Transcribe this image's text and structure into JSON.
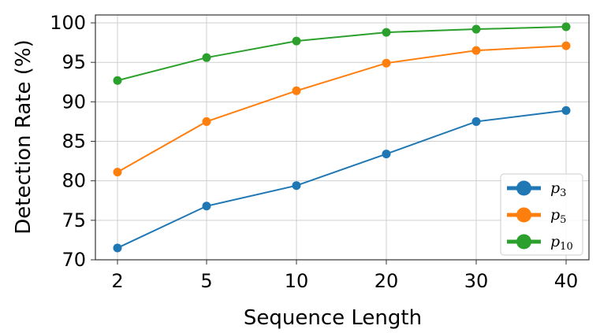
{
  "chart_data": {
    "type": "line",
    "categories": [
      "2",
      "5",
      "10",
      "20",
      "30",
      "40"
    ],
    "xlabel": "Sequence Length",
    "ylabel": "Detection Rate (%)",
    "ylim": [
      70,
      101
    ],
    "yticks": [
      "70",
      "75",
      "80",
      "85",
      "90",
      "95",
      "100"
    ],
    "grid": true,
    "legend_position": "bottom-right",
    "series": [
      {
        "name": "p3",
        "legend_base": "p",
        "legend_sub": "3",
        "color": "#1f77b4",
        "values": [
          71.5,
          76.8,
          79.4,
          83.4,
          87.5,
          88.9
        ]
      },
      {
        "name": "p5",
        "legend_base": "p",
        "legend_sub": "5",
        "color": "#ff7f0e",
        "values": [
          81.1,
          87.5,
          91.4,
          94.9,
          96.5,
          97.1
        ]
      },
      {
        "name": "p10",
        "legend_base": "p",
        "legend_sub": "10",
        "color": "#2ca02c",
        "values": [
          92.7,
          95.6,
          97.7,
          98.8,
          99.2,
          99.5
        ]
      }
    ]
  }
}
